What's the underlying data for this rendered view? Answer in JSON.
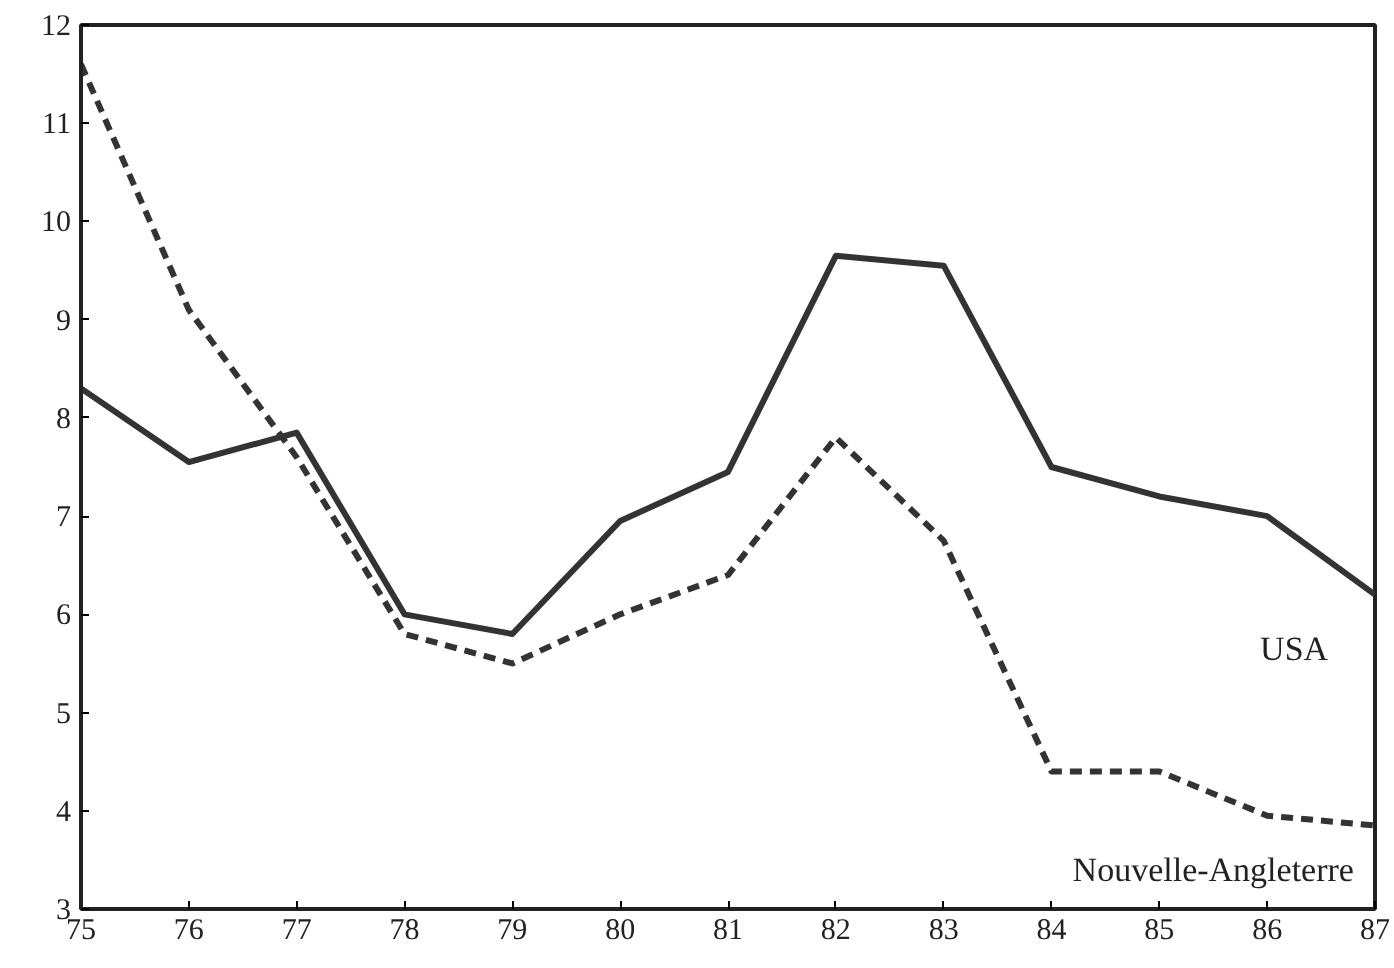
{
  "chart_data": {
    "type": "line",
    "x": [
      75,
      76,
      77,
      78,
      79,
      80,
      81,
      82,
      83,
      84,
      85,
      86,
      87
    ],
    "xlim": [
      75,
      87
    ],
    "xticks": [
      75,
      76,
      77,
      78,
      79,
      80,
      81,
      82,
      83,
      84,
      85,
      86,
      87
    ],
    "ylim": [
      3,
      12
    ],
    "yticks": [
      3,
      4,
      5,
      6,
      7,
      8,
      9,
      10,
      11,
      12
    ],
    "grid": false,
    "series": [
      {
        "name": "USA",
        "color": "#333333",
        "line_style": "solid",
        "values": [
          8.3,
          7.55,
          7.85,
          6.0,
          5.8,
          6.95,
          7.45,
          9.65,
          9.55,
          7.5,
          7.2,
          7.0,
          6.2
        ]
      },
      {
        "name": "Nouvelle-Angleterre",
        "color": "#333333",
        "line_style": "dashed",
        "values": [
          11.6,
          9.1,
          7.6,
          5.8,
          5.5,
          6.0,
          6.4,
          7.8,
          6.75,
          4.4,
          4.4,
          3.95,
          3.85
        ]
      }
    ]
  }
}
